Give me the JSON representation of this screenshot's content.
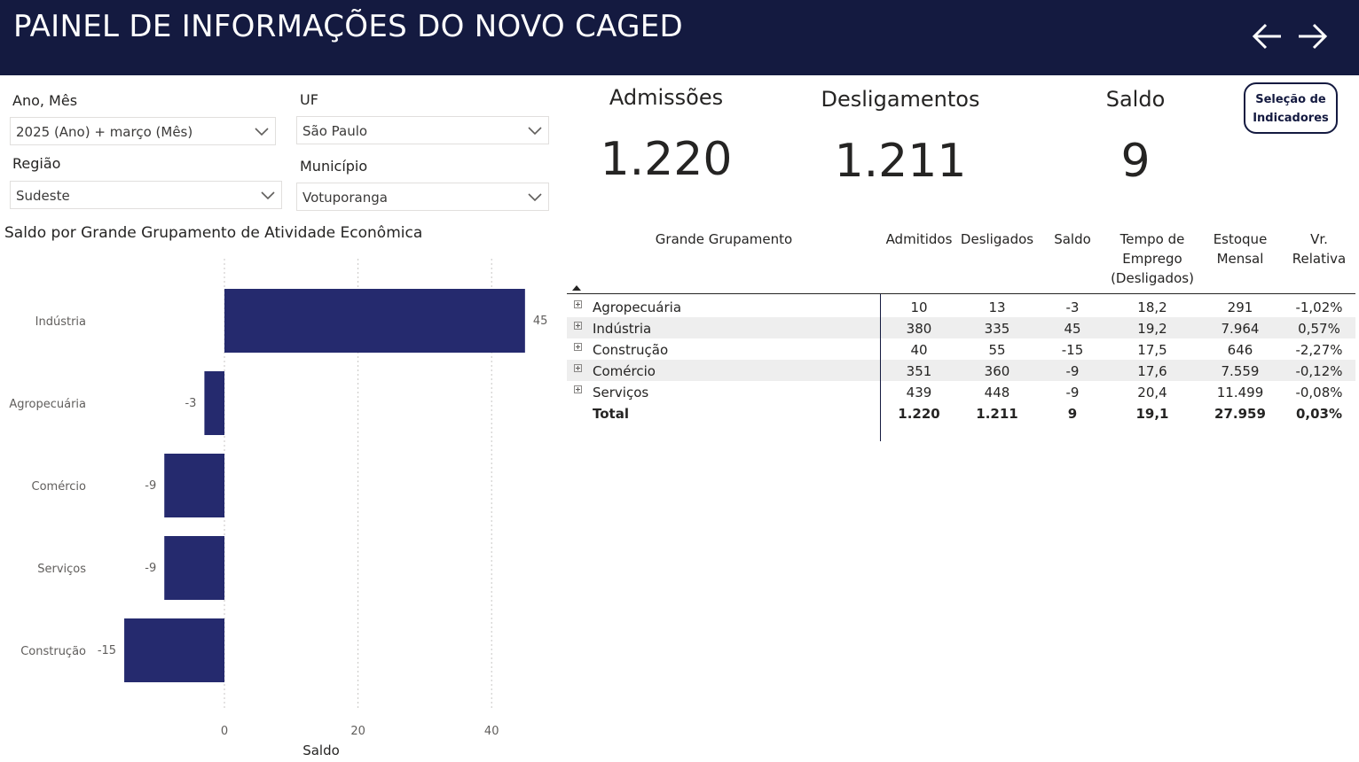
{
  "header": {
    "title": "PAINEL DE INFORMAÇÕES DO NOVO CAGED",
    "back_icon": "arrow-left-icon",
    "forward_icon": "arrow-right-icon",
    "background_color": "#141a40"
  },
  "filters": {
    "ano_mes": {
      "label": "Ano, Mês",
      "value": "2025 (Ano) + março (Mês)"
    },
    "uf": {
      "label": "UF",
      "value": "São Paulo"
    },
    "regiao": {
      "label": "Região",
      "value": "Sudeste"
    },
    "municipio": {
      "label": "Município",
      "value": "Votuporanga"
    }
  },
  "kpis": {
    "admissoes": {
      "label": "Admissões",
      "value": "1.220"
    },
    "desligamentos": {
      "label": "Desligamentos",
      "value": "1.211"
    },
    "saldo": {
      "label": "Saldo",
      "value": "9"
    }
  },
  "selection_button": {
    "line1": "Seleção de",
    "line2": "Indicadores"
  },
  "chart_data": {
    "type": "bar",
    "orientation": "horizontal",
    "title": "Saldo por Grande Grupamento de Atividade Econômica",
    "categories": [
      "Indústria",
      "Agropecuária",
      "Comércio",
      "Serviços",
      "Construção"
    ],
    "values": [
      45,
      -3,
      -9,
      -9,
      -15
    ],
    "data_labels": [
      "45",
      "-3",
      "-9",
      "-9",
      "-15"
    ],
    "xlabel": "Saldo",
    "ylabel": "",
    "x_ticks": [
      "0",
      "20",
      "40"
    ],
    "x_tick_values": [
      0,
      20,
      40
    ],
    "xlim": [
      -15,
      45
    ],
    "grid": true,
    "bar_color": "#252a6e"
  },
  "table": {
    "columns": [
      "Grande Grupamento",
      "Admitidos",
      "Desligados",
      "Saldo",
      "Tempo de Emprego (Desligados)",
      "Estoque Mensal",
      "Vr. Relativa"
    ],
    "header_lines": [
      [
        "Grande Grupamento"
      ],
      [
        "Admitidos"
      ],
      [
        "Desligados"
      ],
      [
        "Saldo"
      ],
      [
        "Tempo de",
        "Emprego",
        "(Desligados)"
      ],
      [
        "Estoque",
        "Mensal"
      ],
      [
        "Vr.",
        "Relativa"
      ]
    ],
    "rows": [
      {
        "name": "Agropecuária",
        "admitidos": "10",
        "desligados": "13",
        "saldo": "-3",
        "tempo": "18,2",
        "estoque": "291",
        "vr": "-1,02%"
      },
      {
        "name": "Indústria",
        "admitidos": "380",
        "desligados": "335",
        "saldo": "45",
        "tempo": "19,2",
        "estoque": "7.964",
        "vr": "0,57%"
      },
      {
        "name": "Construção",
        "admitidos": "40",
        "desligados": "55",
        "saldo": "-15",
        "tempo": "17,5",
        "estoque": "646",
        "vr": "-2,27%"
      },
      {
        "name": "Comércio",
        "admitidos": "351",
        "desligados": "360",
        "saldo": "-9",
        "tempo": "17,6",
        "estoque": "7.559",
        "vr": "-0,12%"
      },
      {
        "name": "Serviços",
        "admitidos": "439",
        "desligados": "448",
        "saldo": "-9",
        "tempo": "20,4",
        "estoque": "11.499",
        "vr": "-0,08%"
      }
    ],
    "total": {
      "name": "Total",
      "admitidos": "1.220",
      "desligados": "1.211",
      "saldo": "9",
      "tempo": "19,1",
      "estoque": "27.959",
      "vr": "0,03%"
    },
    "sort_icon": "sort-ascending-icon",
    "expand_icon": "expand-plus-icon",
    "stripe_color": "#eeeeee"
  }
}
